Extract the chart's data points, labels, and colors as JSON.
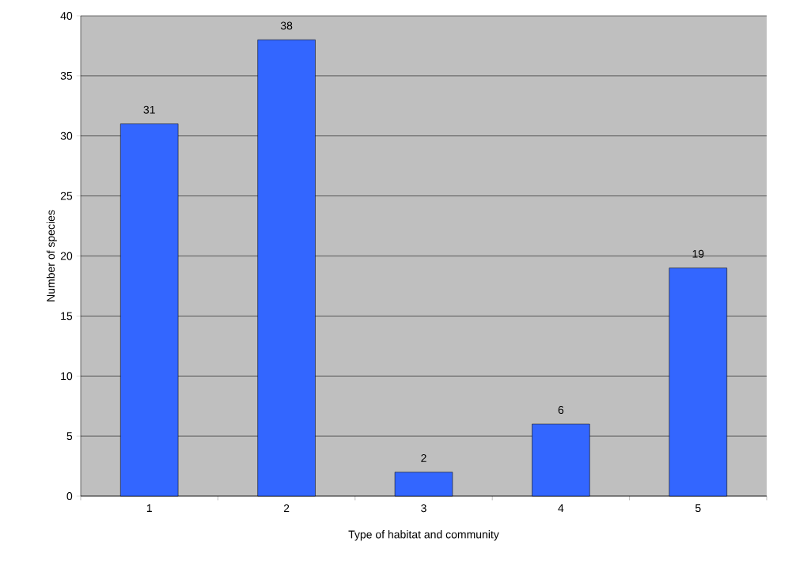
{
  "chart_data": {
    "type": "bar",
    "xlabel": "Type of habitat and community",
    "ylabel": "Number of species",
    "categories": [
      "1",
      "2",
      "3",
      "4",
      "5"
    ],
    "values": [
      31,
      38,
      2,
      6,
      19
    ],
    "color": "#3366ff",
    "ylim": [
      0,
      40
    ],
    "yticks": [
      0,
      5,
      10,
      15,
      20,
      25,
      30,
      35,
      40
    ],
    "grid": "y",
    "data_labels": true
  }
}
